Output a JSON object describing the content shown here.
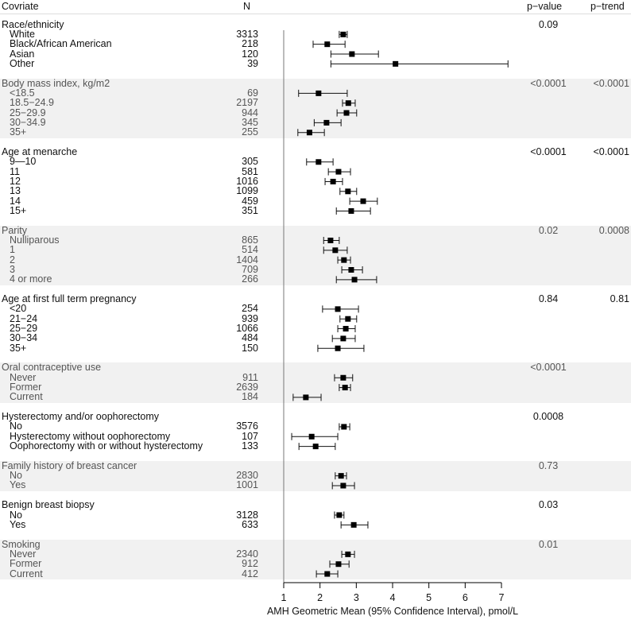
{
  "header": {
    "covariate": "Covriate",
    "n": "N",
    "p_value": "p−value",
    "p_trend": "p−trend"
  },
  "chart_data": {
    "type": "forest",
    "xlabel": "AMH Geometric Mean (95% Confidence Interval), pmol/L",
    "xlim": [
      1,
      7
    ],
    "xticks": [
      "1",
      "2",
      "3",
      "4",
      "5",
      "6",
      "7"
    ],
    "reference_line": 1,
    "groups": [
      {
        "label": "Race/ethnicity",
        "p_value": "0.09",
        "p_trend": "",
        "shaded": false,
        "items": [
          {
            "label": "White",
            "n": "3313",
            "est": 2.64,
            "lo": 2.53,
            "hi": 2.75
          },
          {
            "label": "Black/African American",
            "n": "218",
            "est": 2.2,
            "lo": 1.81,
            "hi": 2.69
          },
          {
            "label": "Asian",
            "n": "120",
            "est": 2.88,
            "lo": 2.3,
            "hi": 3.61
          },
          {
            "label": "Other",
            "n": "39",
            "est": 4.08,
            "lo": 2.3,
            "hi": 7.18
          }
        ]
      },
      {
        "label": "Body mass index, kg/m2",
        "p_value": "<0.0001",
        "p_trend": "<0.0001",
        "shaded": true,
        "items": [
          {
            "label": "<18.5",
            "n": "69",
            "est": 1.96,
            "lo": 1.41,
            "hi": 2.75
          },
          {
            "label": "18.5−24.9",
            "n": "2197",
            "est": 2.78,
            "lo": 2.62,
            "hi": 2.97
          },
          {
            "label": "25−29.9",
            "n": "944",
            "est": 2.73,
            "lo": 2.47,
            "hi": 3.01
          },
          {
            "label": "30−34.9",
            "n": "345",
            "est": 2.18,
            "lo": 1.84,
            "hi": 2.58
          },
          {
            "label": "35+",
            "n": "255",
            "est": 1.71,
            "lo": 1.39,
            "hi": 2.12
          }
        ]
      },
      {
        "label": "Age at menarche",
        "p_value": "<0.0001",
        "p_trend": "<0.0001",
        "shaded": false,
        "items": [
          {
            "label": "9—10",
            "n": "305",
            "est": 1.96,
            "lo": 1.63,
            "hi": 2.36
          },
          {
            "label": "11",
            "n": "581",
            "est": 2.51,
            "lo": 2.23,
            "hi": 2.84
          },
          {
            "label": "12",
            "n": "1016",
            "est": 2.36,
            "lo": 2.14,
            "hi": 2.62
          },
          {
            "label": "13",
            "n": "1099",
            "est": 2.77,
            "lo": 2.55,
            "hi": 3.01
          },
          {
            "label": "14",
            "n": "459",
            "est": 3.19,
            "lo": 2.82,
            "hi": 3.58
          },
          {
            "label": "15+",
            "n": "351",
            "est": 2.86,
            "lo": 2.45,
            "hi": 3.39
          }
        ]
      },
      {
        "label": "Parity",
        "p_value": "0.02",
        "p_trend": "0.0008",
        "shaded": true,
        "items": [
          {
            "label": "Nulliparous",
            "n": "865",
            "est": 2.29,
            "lo": 2.1,
            "hi": 2.53
          },
          {
            "label": "1",
            "n": "514",
            "est": 2.42,
            "lo": 2.1,
            "hi": 2.75
          },
          {
            "label": "2",
            "n": "1404",
            "est": 2.66,
            "lo": 2.49,
            "hi": 2.84
          },
          {
            "label": "3",
            "n": "709",
            "est": 2.86,
            "lo": 2.6,
            "hi": 3.17
          },
          {
            "label": "4 or more",
            "n": "266",
            "est": 2.95,
            "lo": 2.45,
            "hi": 3.56
          }
        ]
      },
      {
        "label": "Age at first full term pregnancy",
        "p_value": "0.84",
        "p_trend": "0.81",
        "shaded": false,
        "items": [
          {
            "label": "<20",
            "n": "254",
            "est": 2.49,
            "lo": 2.07,
            "hi": 3.06
          },
          {
            "label": "21−24",
            "n": "939",
            "est": 2.77,
            "lo": 2.55,
            "hi": 3.01
          },
          {
            "label": "25−29",
            "n": "1066",
            "est": 2.71,
            "lo": 2.49,
            "hi": 2.97
          },
          {
            "label": "30−34",
            "n": "484",
            "est": 2.64,
            "lo": 2.34,
            "hi": 2.97
          },
          {
            "label": "35+",
            "n": "150",
            "est": 2.49,
            "lo": 1.94,
            "hi": 3.21
          }
        ]
      },
      {
        "label": "Oral contraceptive use",
        "p_value": "<0.0001",
        "p_trend": "",
        "shaded": true,
        "items": [
          {
            "label": "Never",
            "n": "911",
            "est": 2.64,
            "lo": 2.4,
            "hi": 2.9
          },
          {
            "label": "Former",
            "n": "2639",
            "est": 2.69,
            "lo": 2.53,
            "hi": 2.84
          },
          {
            "label": "Current",
            "n": "184",
            "est": 1.61,
            "lo": 1.26,
            "hi": 2.03
          }
        ]
      },
      {
        "label": "Hysterectomy and/or oophorectomy",
        "p_value": "0.0008",
        "p_trend": "",
        "shaded": false,
        "items": [
          {
            "label": "No",
            "n": "3576",
            "est": 2.66,
            "lo": 2.53,
            "hi": 2.82
          },
          {
            "label": "Hysterectomy without oophorectomy",
            "n": "107",
            "est": 1.77,
            "lo": 1.22,
            "hi": 2.49
          },
          {
            "label": "Oophorectomy with or without hysterectomy",
            "n": "133",
            "est": 1.88,
            "lo": 1.42,
            "hi": 2.42
          }
        ]
      },
      {
        "label": "Family history of breast cancer",
        "p_value": "0.73",
        "p_trend": "",
        "shaded": true,
        "items": [
          {
            "label": "No",
            "n": "2830",
            "est": 2.58,
            "lo": 2.42,
            "hi": 2.73
          },
          {
            "label": "Yes",
            "n": "1001",
            "est": 2.64,
            "lo": 2.34,
            "hi": 2.95
          }
        ]
      },
      {
        "label": "Benign breast biopsy",
        "p_value": "0.03",
        "p_trend": "",
        "shaded": false,
        "items": [
          {
            "label": "No",
            "n": "3128",
            "est": 2.53,
            "lo": 2.4,
            "hi": 2.66
          },
          {
            "label": "Yes",
            "n": "633",
            "est": 2.93,
            "lo": 2.58,
            "hi": 3.32
          }
        ]
      },
      {
        "label": "Smoking",
        "p_value": "0.01",
        "p_trend": "",
        "shaded": true,
        "items": [
          {
            "label": "Never",
            "n": "2340",
            "est": 2.77,
            "lo": 2.6,
            "hi": 2.95
          },
          {
            "label": "Former",
            "n": "912",
            "est": 2.51,
            "lo": 2.27,
            "hi": 2.8
          },
          {
            "label": "Current",
            "n": "412",
            "est": 2.2,
            "lo": 1.9,
            "hi": 2.49
          }
        ]
      }
    ]
  }
}
